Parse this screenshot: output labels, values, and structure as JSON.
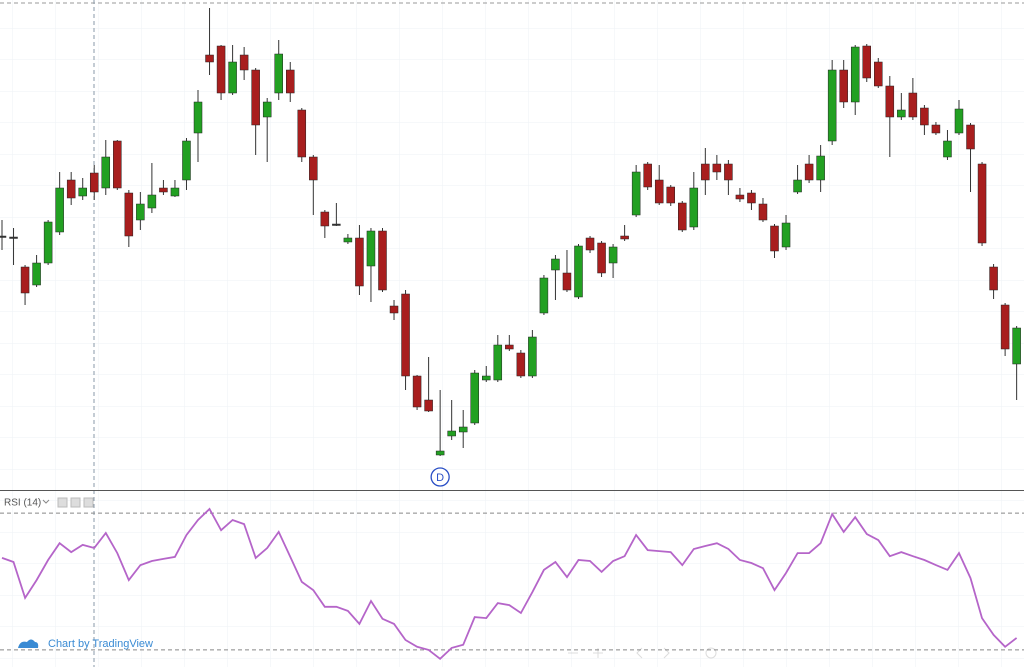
{
  "chart_data": [
    {
      "type": "candlestick",
      "open": [
        264,
        263,
        233,
        215,
        237,
        268,
        320,
        304,
        327,
        312,
        359,
        307,
        280,
        292,
        312,
        304,
        320,
        367,
        445,
        454,
        407,
        445,
        430,
        383,
        407,
        430,
        390,
        343,
        288,
        276,
        258,
        262,
        234,
        269,
        194,
        206,
        124,
        100,
        45,
        64,
        68,
        77,
        120,
        120,
        155,
        147,
        124,
        187,
        230,
        227,
        203,
        262,
        257,
        237,
        264,
        285,
        336,
        320,
        313,
        297,
        273,
        336,
        336,
        336,
        305,
        307,
        296,
        274,
        253,
        308,
        336,
        320,
        359,
        430,
        398,
        454,
        438,
        414,
        383,
        407,
        392,
        375,
        343,
        367,
        375,
        336,
        233,
        195,
        136
      ],
      "high": [
        280,
        272,
        235,
        245,
        280,
        328,
        328,
        322,
        335,
        360,
        360,
        310,
        308,
        337,
        320,
        320,
        362,
        410,
        492,
        455,
        455,
        453,
        432,
        402,
        460,
        438,
        392,
        345,
        290,
        297,
        266,
        275,
        272,
        272,
        200,
        210,
        125,
        143,
        110,
        100,
        90,
        130,
        134,
        165,
        165,
        150,
        170,
        225,
        245,
        250,
        256,
        264,
        259,
        256,
        275,
        335,
        338,
        335,
        315,
        299,
        328,
        352,
        345,
        340,
        312,
        310,
        302,
        276,
        285,
        335,
        345,
        355,
        440,
        440,
        455,
        456,
        442,
        424,
        407,
        422,
        395,
        378,
        370,
        400,
        377,
        338,
        236,
        197,
        174
      ],
      "low": [
        250,
        235,
        195,
        213,
        235,
        265,
        295,
        300,
        300,
        305,
        310,
        253,
        270,
        287,
        305,
        303,
        310,
        338,
        425,
        400,
        405,
        420,
        345,
        338,
        400,
        398,
        338,
        285,
        262,
        274,
        256,
        205,
        198,
        208,
        180,
        110,
        90,
        88,
        44,
        60,
        52,
        75,
        118,
        118,
        149,
        122,
        122,
        185,
        200,
        208,
        201,
        247,
        223,
        222,
        259,
        283,
        310,
        295,
        294,
        268,
        270,
        305,
        320,
        305,
        298,
        290,
        278,
        242,
        250,
        306,
        317,
        308,
        355,
        392,
        385,
        418,
        412,
        343,
        380,
        380,
        365,
        365,
        340,
        365,
        308,
        254,
        201,
        144,
        100
      ],
      "close": [
        264,
        263,
        207,
        237,
        278,
        312,
        302,
        312,
        308,
        343,
        312,
        264,
        296,
        305,
        308,
        312,
        359,
        398,
        438,
        407,
        438,
        430,
        375,
        398,
        446,
        407,
        343,
        320,
        274,
        276,
        262,
        214,
        269,
        210,
        187,
        124,
        93,
        89,
        49,
        69,
        73,
        127,
        124,
        155,
        151,
        124,
        163,
        222,
        241,
        210,
        254,
        250,
        227,
        253,
        261,
        328,
        313,
        297,
        297,
        270,
        312,
        320,
        328,
        320,
        301,
        297,
        280,
        249,
        277,
        320,
        320,
        344,
        430,
        398,
        453,
        422,
        414,
        383,
        390,
        383,
        375,
        367,
        359,
        391,
        351,
        257,
        210,
        151,
        172
      ],
      "ylim": [
        10,
        500
      ],
      "up_color": "#22a022",
      "down_color": "#a81e1e",
      "marker": "D"
    },
    {
      "type": "line",
      "title": "RSI (14)",
      "values": [
        56.9,
        55.7,
        45.2,
        50.4,
        56.3,
        61.2,
        58.6,
        60.7,
        59.8,
        64.2,
        58.3,
        50.4,
        54.8,
        56.0,
        56.6,
        57.2,
        63.6,
        68.0,
        71.2,
        65.0,
        68.0,
        66.8,
        56.9,
        59.8,
        64.5,
        57.2,
        49.9,
        47.5,
        42.6,
        42.6,
        41.4,
        37.6,
        44.3,
        39.1,
        37.6,
        32.9,
        30.9,
        30.0,
        27.4,
        30.6,
        31.5,
        39.6,
        39.3,
        43.7,
        43.1,
        40.8,
        46.9,
        53.4,
        55.7,
        51.3,
        56.3,
        56.0,
        52.8,
        56.0,
        57.4,
        63.6,
        59.2,
        58.9,
        58.6,
        54.8,
        59.5,
        60.4,
        61.2,
        59.5,
        56.3,
        55.4,
        53.9,
        47.5,
        52.5,
        58.3,
        58.3,
        61.2,
        69.7,
        64.5,
        68.8,
        63.9,
        62.1,
        57.4,
        58.6,
        57.4,
        56.3,
        54.8,
        53.4,
        58.3,
        51.0,
        39.3,
        34.4,
        30.9,
        33.5
      ],
      "ylim": [
        25,
        75.3
      ],
      "levels": [
        70,
        30
      ],
      "color": "#b565c9"
    }
  ],
  "credit": "Chart by TradingView"
}
